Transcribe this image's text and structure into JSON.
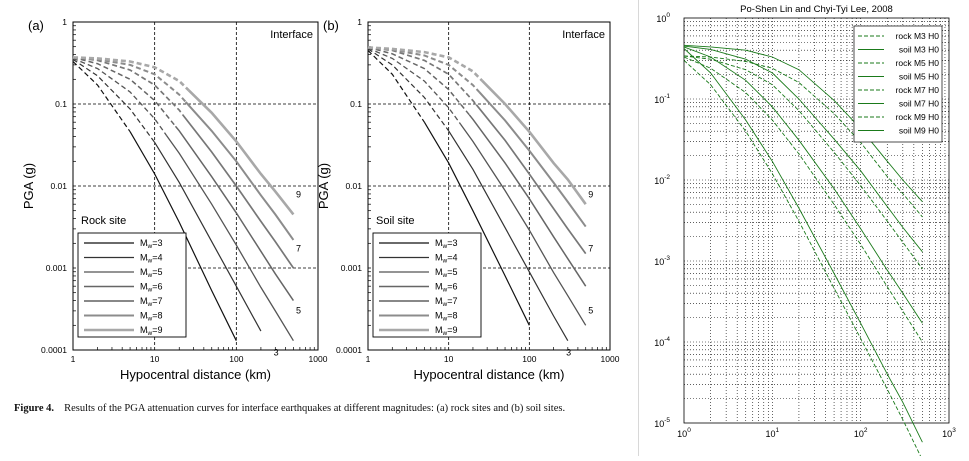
{
  "panel_a": {
    "letter": "(a)",
    "interface_label": "Interface",
    "site_label": "Rock site",
    "ylabel": "PGA (g)",
    "xlabel": "Hypocentral distance (km)",
    "x_ticks": [
      "1",
      "10",
      "100",
      "1000"
    ],
    "y_ticks": [
      "1",
      "0.1",
      "0.01",
      "0.001",
      "0.0001"
    ],
    "curve_labels": [
      "9",
      "7",
      "5",
      "3"
    ],
    "legend": [
      "Mw=3",
      "Mw=4",
      "Mw=5",
      "Mw=6",
      "Mw=7",
      "Mw=8",
      "Mw=9"
    ]
  },
  "panel_b": {
    "letter": "(b)",
    "interface_label": "Interface",
    "site_label": "Soil site",
    "ylabel": "PGA (g)",
    "xlabel": "Hypocentral distance (km)",
    "x_ticks": [
      "1",
      "10",
      "100",
      "1000"
    ],
    "y_ticks": [
      "1",
      "0.1",
      "0.01",
      "0.001",
      "0.0001"
    ],
    "curve_labels": [
      "9",
      "7",
      "5",
      "3"
    ],
    "legend": [
      "Mw=3",
      "Mw=4",
      "Mw=5",
      "Mw=6",
      "Mw=7",
      "Mw=8",
      "Mw=9"
    ]
  },
  "caption": {
    "label": "Figure 4.",
    "text": "Results of the PGA attenuation curves for interface earthquakes at different magnitudes: (a) rock sites and (b) soil sites."
  },
  "right_plot": {
    "title": "Po-Shen Lin and Chyi-Tyi Lee, 2008",
    "y_ticks": [
      {
        "base": "10",
        "exp": "0"
      },
      {
        "base": "10",
        "exp": "-1"
      },
      {
        "base": "10",
        "exp": "-2"
      },
      {
        "base": "10",
        "exp": "-3"
      },
      {
        "base": "10",
        "exp": "-4"
      },
      {
        "base": "10",
        "exp": "-5"
      }
    ],
    "x_ticks": [
      {
        "base": "10",
        "exp": "0"
      },
      {
        "base": "10",
        "exp": "1"
      },
      {
        "base": "10",
        "exp": "2"
      },
      {
        "base": "10",
        "exp": "3"
      }
    ],
    "legend": [
      "rock M3 H0",
      "soil M3 H0",
      "rock M5 H0",
      "soil M5 H0",
      "rock M7 H0",
      "soil M7 H0",
      "rock M9 H0",
      "soil M9 H0"
    ],
    "line_color": "#1a7a1a"
  },
  "chart_data": [
    {
      "type": "line",
      "title": "",
      "xlabel": "Hypocentral distance (km)",
      "ylabel": "PGA (g)",
      "xscale": "log",
      "yscale": "log",
      "xlim": [
        1,
        1000
      ],
      "ylim": [
        0.0001,
        1
      ],
      "grid": "dashed at decades",
      "legend_position": "bottom-left",
      "x": [
        1,
        2,
        5,
        10,
        20,
        50,
        100,
        200,
        300,
        500
      ],
      "series": [
        {
          "name": "Mw=3",
          "values": [
            0.33,
            0.17,
            0.046,
            0.014,
            0.0036,
            0.00053,
            0.00013,
            null,
            null,
            null
          ]
        },
        {
          "name": "Mw=4",
          "values": [
            0.35,
            0.22,
            0.087,
            0.034,
            0.011,
            0.0021,
            0.0006,
            0.00017,
            null,
            null
          ]
        },
        {
          "name": "Mw=5",
          "values": [
            0.36,
            0.27,
            0.14,
            0.066,
            0.025,
            0.006,
            0.0019,
            0.00058,
            0.0003,
            0.00013
          ]
        },
        {
          "name": "Mw=6",
          "values": [
            0.37,
            0.31,
            0.2,
            0.11,
            0.047,
            0.013,
            0.0047,
            0.0016,
            0.00085,
            0.0004
          ]
        },
        {
          "name": "Mw=7",
          "values": [
            0.37,
            0.34,
            0.26,
            0.17,
            0.084,
            0.026,
            0.01,
            0.0037,
            0.0021,
            0.001
          ]
        },
        {
          "name": "Mw=8",
          "values": [
            0.37,
            0.35,
            0.3,
            0.23,
            0.13,
            0.047,
            0.02,
            0.0077,
            0.0045,
            0.0022
          ]
        },
        {
          "name": "Mw=9",
          "values": [
            0.37,
            0.36,
            0.33,
            0.28,
            0.19,
            0.078,
            0.035,
            0.014,
            0.0086,
            0.0045
          ]
        }
      ]
    },
    {
      "type": "line",
      "title": "",
      "xlabel": "Hypocentral distance (km)",
      "ylabel": "PGA (g)",
      "xscale": "log",
      "yscale": "log",
      "xlim": [
        1,
        1000
      ],
      "ylim": [
        0.0001,
        1
      ],
      "grid": "dashed at decades",
      "legend_position": "bottom-left",
      "x": [
        1,
        2,
        5,
        10,
        20,
        50,
        100,
        200,
        300,
        500
      ],
      "series": [
        {
          "name": "Mw=3",
          "values": [
            0.45,
            0.23,
            0.06,
            0.019,
            0.005,
            0.0008,
            0.0002,
            null,
            null,
            null
          ]
        },
        {
          "name": "Mw=4",
          "values": [
            0.47,
            0.3,
            0.12,
            0.047,
            0.016,
            0.0031,
            0.0009,
            0.00026,
            0.00013,
            null
          ]
        },
        {
          "name": "Mw=5",
          "values": [
            0.48,
            0.36,
            0.19,
            0.09,
            0.035,
            0.0088,
            0.0029,
            0.00088,
            0.00046,
            0.0002
          ]
        },
        {
          "name": "Mw=6",
          "values": [
            0.49,
            0.41,
            0.27,
            0.15,
            0.065,
            0.019,
            0.007,
            0.0024,
            0.0013,
            0.0006
          ]
        },
        {
          "name": "Mw=7",
          "values": [
            0.49,
            0.45,
            0.34,
            0.23,
            0.11,
            0.036,
            0.014,
            0.0053,
            0.003,
            0.0015
          ]
        },
        {
          "name": "Mw=8",
          "values": [
            0.49,
            0.46,
            0.39,
            0.3,
            0.17,
            0.063,
            0.027,
            0.011,
            0.0064,
            0.0032
          ]
        },
        {
          "name": "Mw=9",
          "values": [
            0.49,
            0.47,
            0.43,
            0.37,
            0.25,
            0.1,
            0.046,
            0.019,
            0.012,
            0.006
          ]
        }
      ]
    },
    {
      "type": "line",
      "title": "Po-Shen Lin and Chyi-Tyi Lee, 2008",
      "xlabel": "",
      "ylabel": "",
      "xscale": "log",
      "yscale": "log",
      "xlim": [
        1,
        1000
      ],
      "ylim": [
        1e-05,
        1
      ],
      "grid": "dotted, minor and major",
      "legend_position": "top-right",
      "x": [
        1,
        2,
        5,
        10,
        20,
        50,
        100,
        200,
        300,
        500
      ],
      "series": [
        {
          "name": "rock M3 H0",
          "dash": true,
          "values": [
            0.3,
            0.15,
            0.04,
            0.012,
            0.0031,
            0.00046,
            0.00011,
            2.6e-05,
            1.1e-05,
            3.5e-06
          ]
        },
        {
          "name": "soil M3 H0",
          "dash": false,
          "values": [
            0.42,
            0.21,
            0.055,
            0.017,
            0.0045,
            0.0007,
            0.00017,
            4e-05,
            1.8e-05,
            5.8e-06
          ]
        },
        {
          "name": "rock M5 H0",
          "dash": true,
          "values": [
            0.33,
            0.24,
            0.12,
            0.055,
            0.021,
            0.005,
            0.0016,
            0.00048,
            0.00024,
            0.0001
          ]
        },
        {
          "name": "soil M5 H0",
          "dash": false,
          "values": [
            0.44,
            0.33,
            0.17,
            0.08,
            0.031,
            0.0078,
            0.0025,
            0.00077,
            0.0004,
            0.00017
          ]
        },
        {
          "name": "rock M7 H0",
          "dash": true,
          "values": [
            0.34,
            0.31,
            0.23,
            0.15,
            0.072,
            0.022,
            0.0085,
            0.0031,
            0.0017,
            0.0008
          ]
        },
        {
          "name": "soil M7 H0",
          "dash": false,
          "values": [
            0.45,
            0.41,
            0.31,
            0.21,
            0.1,
            0.032,
            0.013,
            0.0047,
            0.0026,
            0.0013
          ]
        },
        {
          "name": "rock M9 H0",
          "dash": true,
          "values": [
            0.34,
            0.33,
            0.29,
            0.24,
            0.16,
            0.066,
            0.029,
            0.011,
            0.0068,
            0.0035
          ]
        },
        {
          "name": "soil M9 H0",
          "dash": false,
          "values": [
            0.46,
            0.44,
            0.4,
            0.33,
            0.23,
            0.096,
            0.043,
            0.017,
            0.01,
            0.0054
          ]
        }
      ]
    }
  ]
}
